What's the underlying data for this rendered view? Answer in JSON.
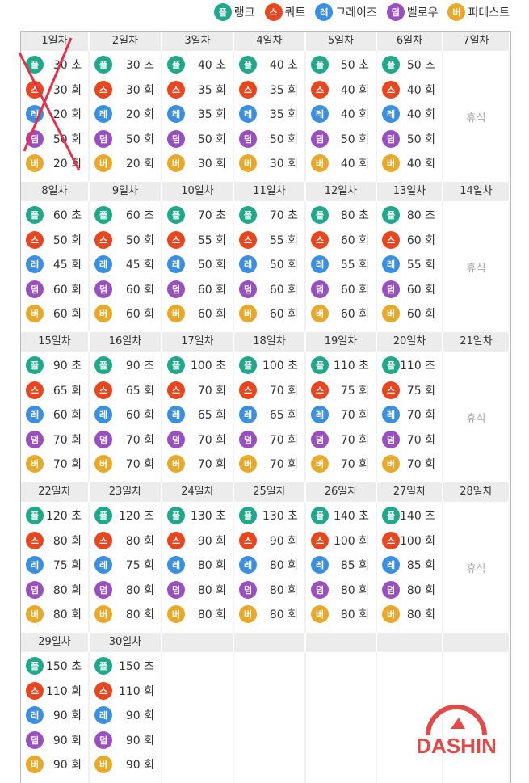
{
  "legend": [
    {
      "badge": "플",
      "label": "랭크",
      "color": "#1fa88a"
    },
    {
      "badge": "스",
      "label": "쿼트",
      "color": "#e8461e"
    },
    {
      "badge": "레",
      "label": "그레이즈",
      "color": "#3a8fe0"
    },
    {
      "badge": "덤",
      "label": "벨로우",
      "color": "#9a4fc0"
    },
    {
      "badge": "버",
      "label": "피테스트",
      "color": "#e8a92a"
    }
  ],
  "units": [
    "초",
    "회",
    "회",
    "회",
    "회"
  ],
  "rest_label": "휴식",
  "day_suffix": "일차",
  "completed_marker": "red-x-mark over day 1",
  "days": [
    [
      30,
      30,
      20,
      50,
      20
    ],
    [
      30,
      30,
      20,
      50,
      20
    ],
    [
      40,
      35,
      35,
      50,
      30
    ],
    [
      40,
      35,
      35,
      50,
      30
    ],
    [
      50,
      40,
      40,
      50,
      40
    ],
    [
      50,
      40,
      40,
      50,
      40
    ],
    null,
    [
      60,
      50,
      45,
      60,
      60
    ],
    [
      60,
      50,
      45,
      60,
      60
    ],
    [
      70,
      55,
      50,
      60,
      60
    ],
    [
      70,
      55,
      50,
      60,
      60
    ],
    [
      80,
      60,
      55,
      60,
      60
    ],
    [
      80,
      60,
      55,
      60,
      60
    ],
    null,
    [
      90,
      65,
      60,
      70,
      70
    ],
    [
      90,
      65,
      60,
      70,
      70
    ],
    [
      100,
      70,
      65,
      70,
      70
    ],
    [
      100,
      70,
      65,
      70,
      70
    ],
    [
      110,
      75,
      70,
      70,
      70
    ],
    [
      110,
      75,
      70,
      70,
      70
    ],
    null,
    [
      120,
      80,
      75,
      80,
      80
    ],
    [
      120,
      80,
      75,
      80,
      80
    ],
    [
      130,
      90,
      80,
      80,
      80
    ],
    [
      130,
      90,
      80,
      80,
      80
    ],
    [
      140,
      100,
      85,
      80,
      80
    ],
    [
      140,
      100,
      85,
      80,
      80
    ],
    null,
    [
      150,
      110,
      90,
      90,
      90
    ],
    [
      150,
      110,
      90,
      90,
      90
    ]
  ],
  "logo": {
    "text": "DASHIN",
    "color": "#e24a4a"
  }
}
